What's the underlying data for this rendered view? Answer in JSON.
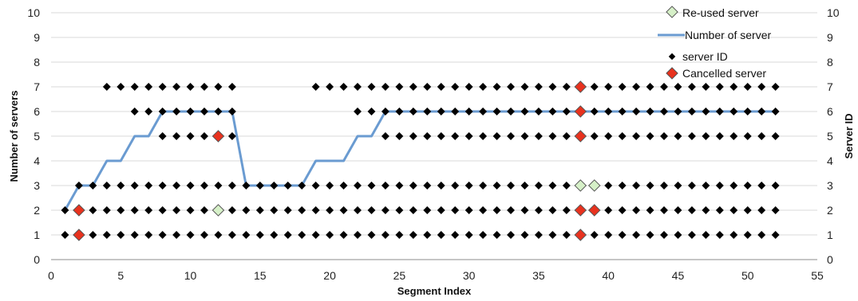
{
  "chart_data": {
    "type": "line",
    "title": "",
    "xlabel": "Segment Index",
    "ylabel_left": "Number of servers",
    "ylabel_right": "Server ID",
    "xlim": [
      0,
      55
    ],
    "ylim": [
      0,
      10
    ],
    "x_ticks": [
      "0",
      "5",
      "10",
      "15",
      "20",
      "25",
      "30",
      "35",
      "40",
      "45",
      "50",
      "55"
    ],
    "y_ticks": [
      "0",
      "1",
      "2",
      "3",
      "4",
      "5",
      "6",
      "7",
      "8",
      "9",
      "10"
    ],
    "grid": "horizontal",
    "legend": {
      "position": "top-right",
      "entries": [
        "Re-used server",
        "Number of server",
        "server ID",
        "Cancelled server"
      ]
    },
    "colors": {
      "line": "#6a9bd1",
      "server_id": "#000000",
      "cancelled": "#e8321e",
      "reused": "#d6f0c8",
      "grid": "#d9d9d9"
    },
    "series": [
      {
        "name": "Number of server",
        "kind": "line",
        "points": [
          [
            1,
            2
          ],
          [
            2,
            3
          ],
          [
            3,
            3
          ],
          [
            4,
            4
          ],
          [
            5,
            4
          ],
          [
            6,
            5
          ],
          [
            7,
            5
          ],
          [
            8,
            6
          ],
          [
            9,
            6
          ],
          [
            10,
            6
          ],
          [
            11,
            6
          ],
          [
            12,
            6
          ],
          [
            13,
            6
          ],
          [
            14,
            3
          ],
          [
            15,
            3
          ],
          [
            16,
            3
          ],
          [
            17,
            3
          ],
          [
            18,
            3
          ],
          [
            19,
            4
          ],
          [
            20,
            4
          ],
          [
            21,
            4
          ],
          [
            22,
            5
          ],
          [
            23,
            5
          ],
          [
            24,
            6
          ],
          [
            25,
            6
          ],
          [
            26,
            6
          ],
          [
            27,
            6
          ],
          [
            28,
            6
          ],
          [
            29,
            6
          ],
          [
            30,
            6
          ],
          [
            31,
            6
          ],
          [
            32,
            6
          ],
          [
            33,
            6
          ],
          [
            34,
            6
          ],
          [
            35,
            6
          ],
          [
            36,
            6
          ],
          [
            37,
            6
          ],
          [
            38,
            6
          ],
          [
            39,
            6
          ],
          [
            40,
            6
          ],
          [
            41,
            6
          ],
          [
            42,
            6
          ],
          [
            43,
            6
          ],
          [
            44,
            6
          ],
          [
            45,
            6
          ],
          [
            46,
            6
          ],
          [
            47,
            6
          ],
          [
            48,
            6
          ],
          [
            49,
            6
          ],
          [
            50,
            6
          ],
          [
            51,
            6
          ],
          [
            52,
            6
          ]
        ]
      },
      {
        "name": "server ID",
        "kind": "rows",
        "rows": [
          {
            "y": 1,
            "x_ranges": [
              [
                1,
                52
              ]
            ]
          },
          {
            "y": 2,
            "x_ranges": [
              [
                1,
                52
              ]
            ]
          },
          {
            "y": 3,
            "x_ranges": [
              [
                2,
                13
              ],
              [
                14,
                52
              ]
            ]
          },
          {
            "y": 5,
            "x_ranges": [
              [
                8,
                13
              ],
              [
                24,
                52
              ]
            ]
          },
          {
            "y": 6,
            "x_ranges": [
              [
                6,
                13
              ],
              [
                22,
                52
              ]
            ]
          },
          {
            "y": 7,
            "x_ranges": [
              [
                4,
                13
              ],
              [
                19,
                52
              ]
            ]
          }
        ]
      },
      {
        "name": "Cancelled server",
        "kind": "points",
        "points": [
          [
            2,
            1
          ],
          [
            2,
            2
          ],
          [
            12,
            5
          ],
          [
            38,
            1
          ],
          [
            38,
            2
          ],
          [
            39,
            2
          ],
          [
            38,
            5
          ],
          [
            38,
            6
          ],
          [
            38,
            7
          ]
        ]
      },
      {
        "name": "Re-used server",
        "kind": "points",
        "points": [
          [
            12,
            2
          ],
          [
            38,
            3
          ],
          [
            39,
            3
          ]
        ]
      }
    ]
  }
}
